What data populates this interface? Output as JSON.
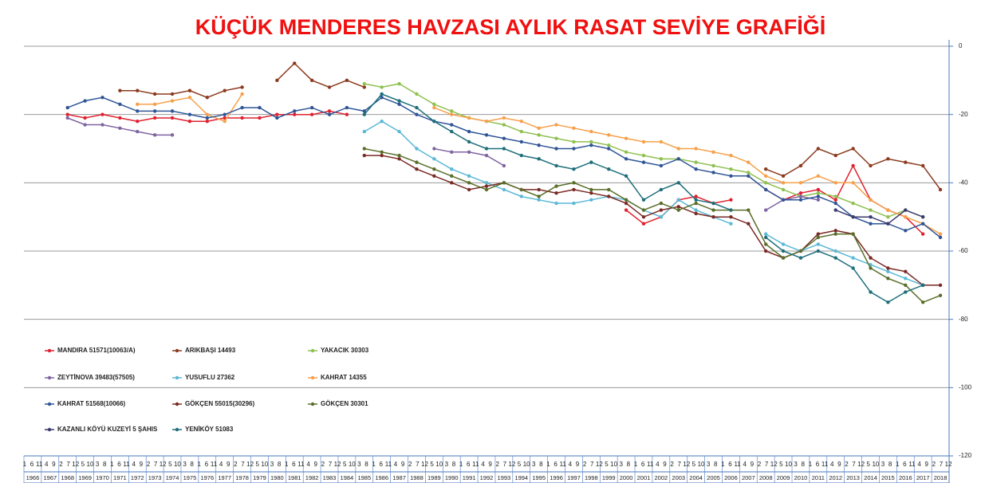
{
  "chart_data": {
    "type": "line",
    "title": "KÜÇÜK MENDERES HAVZASI AYLIK RASAT SEVİYE GRAFİĞİ",
    "categories": [
      "1966",
      "1967",
      "1968",
      "1969",
      "1970",
      "1971",
      "1972",
      "1973",
      "1974",
      "1975",
      "1976",
      "1977",
      "1978",
      "1979",
      "1980",
      "1981",
      "1982",
      "1983",
      "1984",
      "1985",
      "1986",
      "1987",
      "1988",
      "1989",
      "1990",
      "1991",
      "1992",
      "1993",
      "1994",
      "1995",
      "1996",
      "1997",
      "1998",
      "1999",
      "2000",
      "2001",
      "2002",
      "2003",
      "2004",
      "2005",
      "2006",
      "2007",
      "2008",
      "2009",
      "2010",
      "2011",
      "2012",
      "2013",
      "2014",
      "2015",
      "2016",
      "2017",
      "2018"
    ],
    "month_ticks": [
      1,
      6,
      11,
      4,
      9,
      2,
      7,
      12,
      5,
      10,
      3,
      8,
      1,
      6,
      11,
      4,
      9,
      2,
      7,
      12,
      5,
      10,
      3,
      8,
      1,
      6,
      11,
      4,
      9,
      2,
      7,
      12,
      5,
      10,
      3,
      8,
      1,
      6,
      11,
      4,
      9,
      2,
      7,
      12,
      5,
      10,
      3,
      8,
      1,
      6,
      11,
      4,
      9,
      2,
      7,
      12,
      5,
      10,
      3,
      8,
      1,
      6,
      11,
      4,
      9,
      2,
      7,
      12,
      5,
      10,
      3,
      8,
      1,
      6,
      11,
      4,
      9,
      2,
      7,
      12,
      5,
      10,
      3,
      8,
      1,
      6,
      11,
      4,
      9,
      2,
      7,
      12,
      5,
      10,
      3,
      8,
      1,
      6,
      11,
      4,
      9,
      2,
      7,
      12,
      5,
      10,
      3,
      8,
      1,
      6,
      11,
      4,
      9,
      2,
      7,
      12,
      5,
      10,
      3,
      8,
      1,
      6,
      11,
      4,
      9,
      2,
      7,
      12
    ],
    "ylim": [
      -120,
      0
    ],
    "yticks": [
      0,
      -20,
      -40,
      -60,
      -80,
      -100,
      -120
    ],
    "grid": true,
    "series": [
      {
        "name": "MANDIRA 51571(10063/A)",
        "color": "#e0202e",
        "values": [
          null,
          null,
          -20,
          -21,
          -20,
          -21,
          -22,
          -21,
          -21,
          -22,
          -22,
          -21,
          -21,
          -21,
          -20,
          -20,
          -20,
          -19,
          -20,
          null,
          null,
          null,
          null,
          null,
          null,
          null,
          null,
          null,
          null,
          null,
          null,
          null,
          null,
          null,
          -48,
          -52,
          -50,
          -45,
          -44,
          -46,
          -45,
          null,
          -42,
          -45,
          -43,
          -42,
          -45,
          -35,
          -45,
          -48,
          -50,
          -55,
          null
        ]
      },
      {
        "name": "ARIKBAŞI 14493",
        "color": "#8b3a1e",
        "values": [
          null,
          null,
          null,
          null,
          null,
          -13,
          -13,
          -14,
          -14,
          -13,
          -15,
          -13,
          -12,
          null,
          -10,
          -5,
          -10,
          -12,
          -10,
          -12,
          null,
          null,
          null,
          null,
          null,
          null,
          null,
          null,
          null,
          null,
          null,
          null,
          null,
          null,
          null,
          null,
          null,
          null,
          null,
          null,
          null,
          null,
          -36,
          -38,
          -35,
          -30,
          -32,
          -30,
          -35,
          -33,
          -34,
          -35,
          -42
        ]
      },
      {
        "name": "YAKACIK 30303",
        "color": "#8fc050",
        "values": [
          null,
          null,
          null,
          null,
          null,
          null,
          null,
          null,
          null,
          null,
          null,
          null,
          null,
          null,
          null,
          null,
          null,
          null,
          null,
          -11,
          -12,
          -11,
          -14,
          -17,
          -19,
          -21,
          -22,
          -23,
          -25,
          -26,
          -27,
          -28,
          -28,
          -29,
          -31,
          -32,
          -33,
          -33,
          -34,
          -35,
          -36,
          -37,
          -40,
          -42,
          -44,
          -43,
          -44,
          -46,
          -48,
          -50,
          -48,
          -50,
          null
        ]
      },
      {
        "name": "ZEYTİNOVA 39483(57505)",
        "color": "#8064a2",
        "values": [
          null,
          null,
          -21,
          -23,
          -23,
          -24,
          -25,
          -26,
          -26,
          null,
          null,
          null,
          null,
          null,
          null,
          null,
          null,
          null,
          null,
          null,
          null,
          null,
          null,
          -30,
          -31,
          -31,
          -32,
          -35,
          null,
          null,
          null,
          null,
          null,
          null,
          null,
          null,
          null,
          null,
          null,
          null,
          null,
          null,
          -48,
          -45,
          -44,
          -45,
          null,
          null,
          null,
          null,
          null,
          null,
          null
        ]
      },
      {
        "name": "YUSUFLU 27362",
        "color": "#5bb8d6",
        "values": [
          null,
          null,
          null,
          null,
          null,
          null,
          null,
          null,
          null,
          null,
          null,
          null,
          null,
          null,
          null,
          null,
          null,
          null,
          null,
          -25,
          -22,
          -25,
          -30,
          -33,
          -36,
          -38,
          -40,
          -42,
          -44,
          -45,
          -46,
          -46,
          -45,
          -44,
          -45,
          -48,
          -50,
          -45,
          -48,
          -50,
          -52,
          null,
          -55,
          -58,
          -60,
          -58,
          -60,
          -62,
          -64,
          -66,
          -68,
          -70,
          null
        ]
      },
      {
        "name": "KAHRAT 14355",
        "color": "#f7a04a",
        "values": [
          null,
          null,
          null,
          null,
          null,
          null,
          -17,
          -17,
          -16,
          -15,
          -20,
          -22,
          -14,
          null,
          null,
          null,
          null,
          null,
          null,
          null,
          null,
          null,
          null,
          -18,
          -20,
          -21,
          -22,
          -21,
          -22,
          -24,
          -23,
          -24,
          -25,
          -26,
          -27,
          -28,
          -28,
          -30,
          -30,
          -31,
          -32,
          -34,
          -38,
          -40,
          -40,
          -38,
          -40,
          -40,
          -45,
          -48,
          -50,
          -52,
          -55
        ]
      },
      {
        "name": "KAHRAT 51568(10066)",
        "color": "#2f5597",
        "values": [
          null,
          null,
          -18,
          -16,
          -15,
          -17,
          -19,
          -19,
          -19,
          -20,
          -21,
          -20,
          -18,
          -18,
          -21,
          -19,
          -18,
          -20,
          -18,
          -19,
          -15,
          -17,
          -20,
          -22,
          -23,
          -25,
          -26,
          -27,
          -28,
          -29,
          -30,
          -30,
          -29,
          -30,
          -33,
          -34,
          -35,
          -33,
          -36,
          -37,
          -38,
          -38,
          -42,
          -45,
          -45,
          -44,
          -46,
          -50,
          -52,
          -52,
          -54,
          -52,
          -56
        ]
      },
      {
        "name": "GÖKÇEN 55015(30296)",
        "color": "#7a2a24",
        "values": [
          null,
          null,
          null,
          null,
          null,
          null,
          null,
          null,
          null,
          null,
          null,
          null,
          null,
          null,
          null,
          null,
          null,
          null,
          null,
          -32,
          -32,
          -33,
          -36,
          -38,
          -40,
          -42,
          -41,
          -40,
          -42,
          -42,
          -43,
          -42,
          -43,
          -44,
          -46,
          -50,
          -48,
          -47,
          -49,
          -50,
          -50,
          -52,
          -60,
          -62,
          -60,
          -55,
          -54,
          -55,
          -62,
          -65,
          -66,
          -70,
          -70
        ]
      },
      {
        "name": "GÖKÇEN 30301",
        "color": "#5a6e2a",
        "values": [
          null,
          null,
          null,
          null,
          null,
          null,
          null,
          null,
          null,
          null,
          null,
          null,
          null,
          null,
          null,
          null,
          null,
          null,
          null,
          -30,
          -31,
          -32,
          -34,
          -36,
          -38,
          -40,
          -42,
          -40,
          -42,
          -44,
          -41,
          -40,
          -42,
          -42,
          -45,
          -48,
          -46,
          -48,
          -46,
          -48,
          -48,
          -48,
          -58,
          -62,
          -60,
          -56,
          -55,
          -55,
          -65,
          -68,
          -70,
          -75,
          -73
        ]
      },
      {
        "name": "KAZANLI KÖYÜ KUZEYİ 5 ŞAHIS",
        "color": "#3a3a6e",
        "values": [
          null,
          null,
          null,
          null,
          null,
          null,
          null,
          null,
          null,
          null,
          null,
          null,
          null,
          null,
          null,
          null,
          null,
          null,
          null,
          null,
          null,
          null,
          null,
          null,
          null,
          null,
          null,
          null,
          null,
          null,
          null,
          null,
          null,
          null,
          null,
          null,
          null,
          null,
          null,
          null,
          null,
          null,
          null,
          null,
          null,
          null,
          -48,
          -50,
          -50,
          -52,
          -48,
          -50,
          null
        ]
      },
      {
        "name": "YENİKÖY 51083",
        "color": "#1f6f7a",
        "values": [
          null,
          null,
          null,
          null,
          null,
          null,
          null,
          null,
          null,
          null,
          null,
          null,
          null,
          null,
          null,
          null,
          null,
          null,
          null,
          -20,
          -14,
          -16,
          -18,
          -22,
          -25,
          -28,
          -30,
          -30,
          -32,
          -33,
          -35,
          -36,
          -34,
          -36,
          -38,
          -45,
          -42,
          -40,
          -45,
          -46,
          -48,
          null,
          -56,
          -60,
          -62,
          -60,
          -62,
          -65,
          -72,
          -75,
          -72,
          -70,
          null
        ]
      }
    ]
  }
}
